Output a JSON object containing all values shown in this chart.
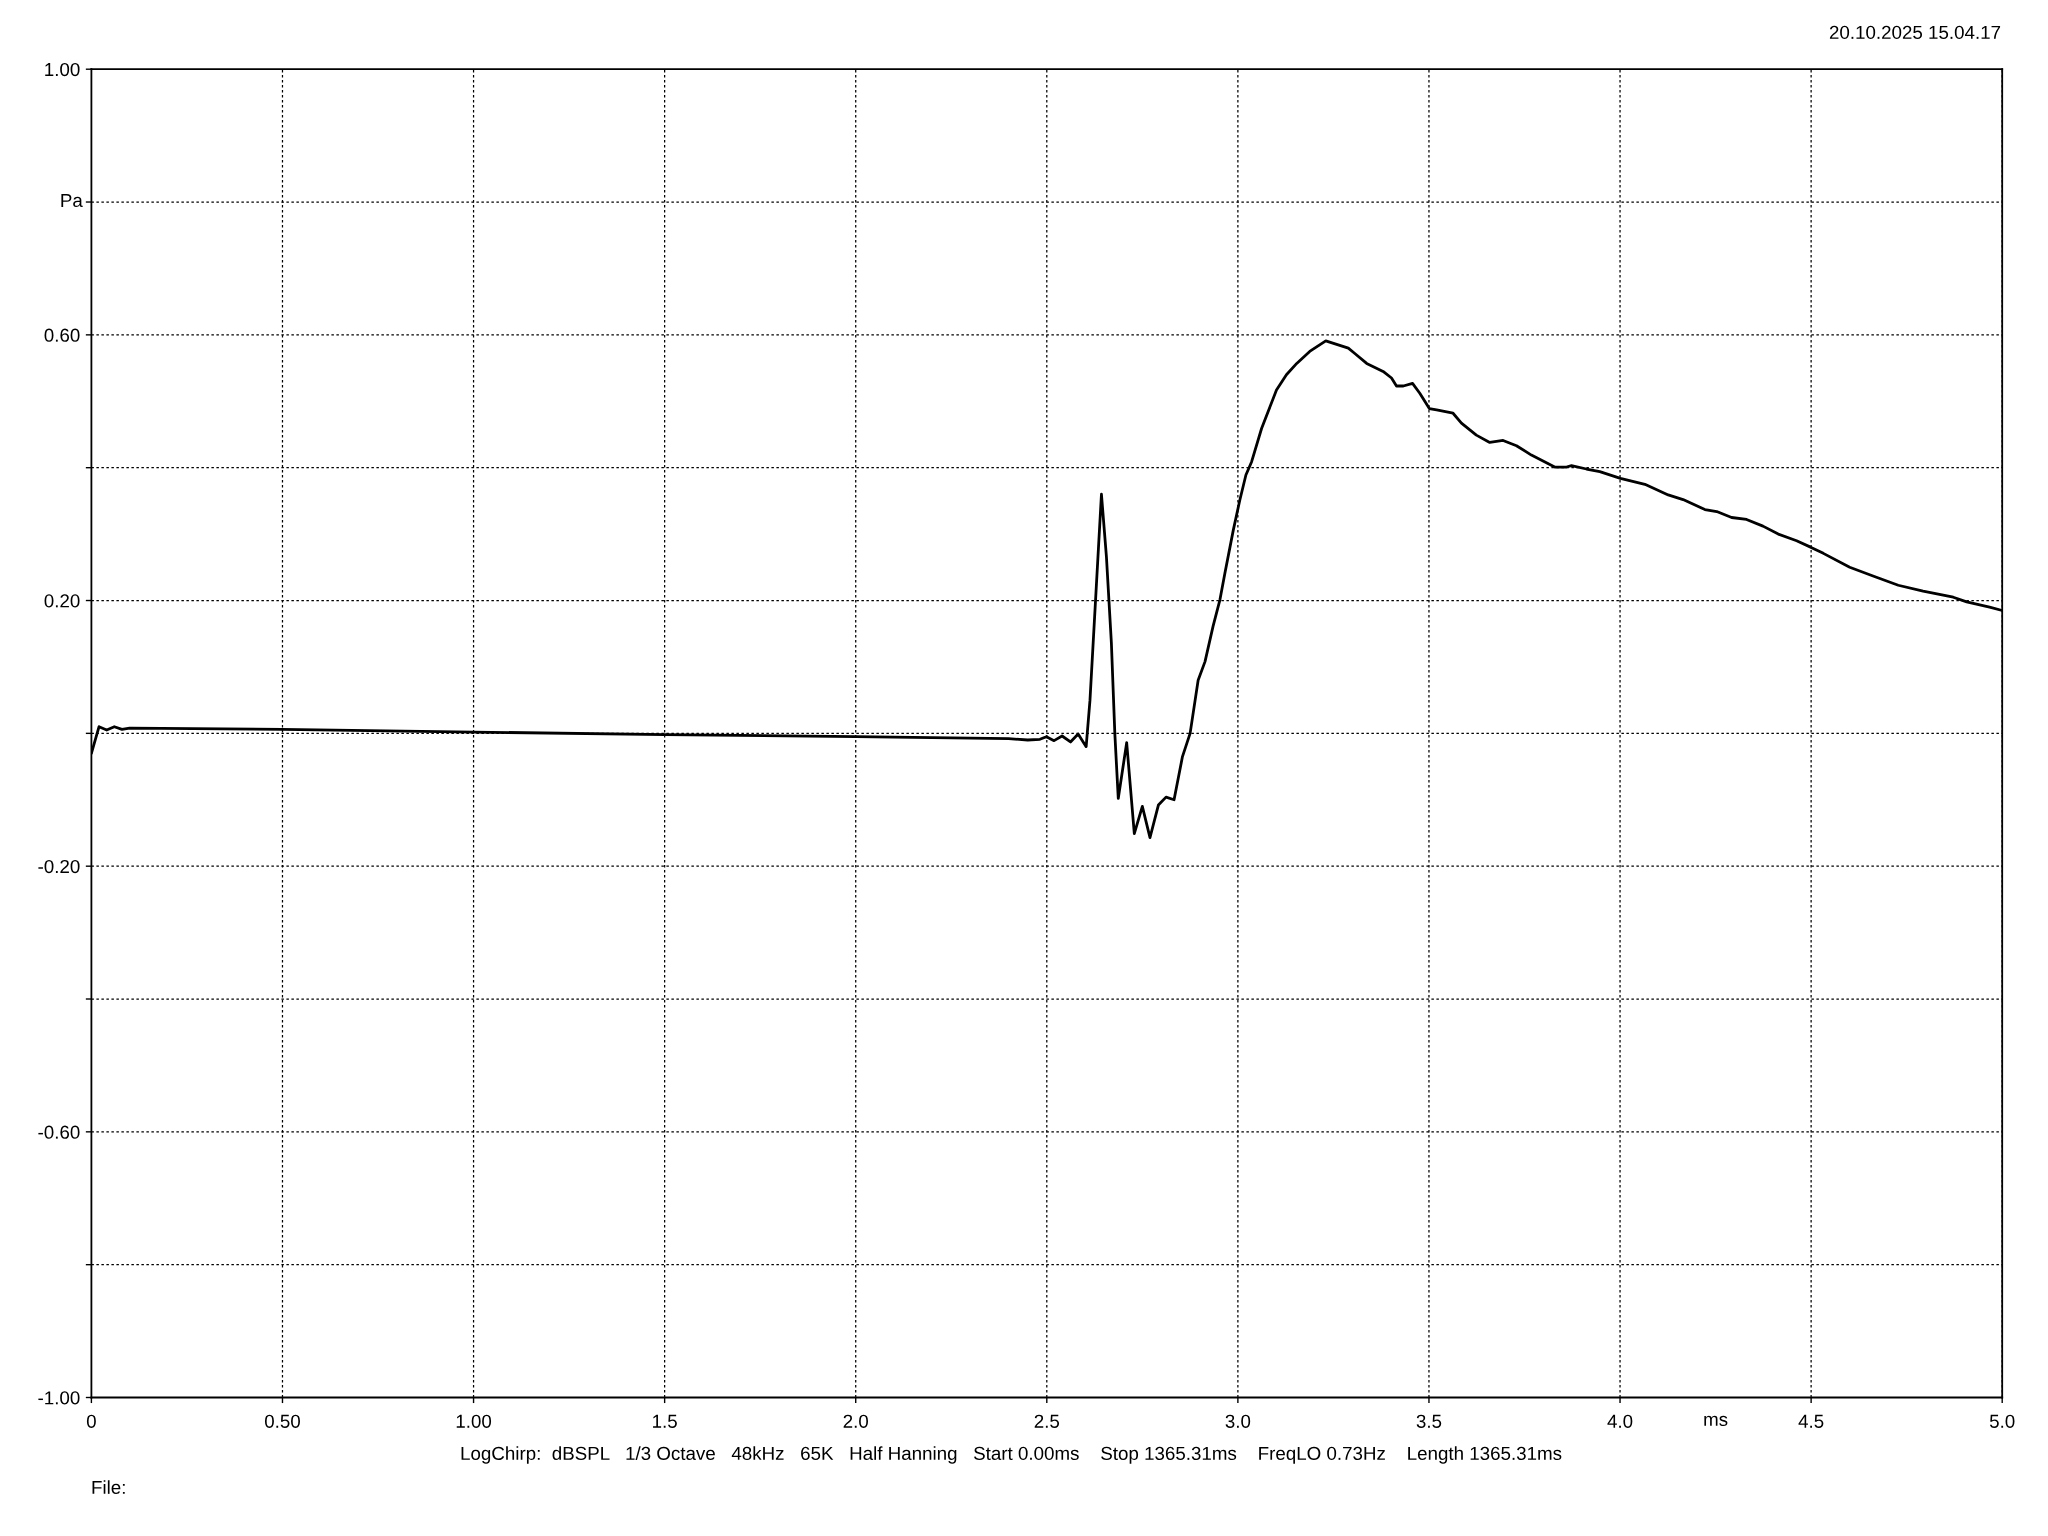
{
  "chart_data": {
    "type": "line",
    "xlabel": "ms",
    "ylabel": "Pa",
    "annotations": [
      "20.10.2025 15.04.17",
      "LogChirp:  dBSPL   1/3 Octave   48kHz   65K   Half Hanning   Start 0.00ms    Stop 1365.31ms    FreqLO 0.73Hz    Length 1365.31ms",
      "File:"
    ],
    "x": [
      0,
      0.02,
      0.04,
      0.06,
      0.08,
      0.1,
      0.5,
      1.0,
      1.5,
      2.0,
      2.4,
      2.45,
      2.482,
      2.499,
      2.519,
      2.54,
      2.562,
      2.582,
      2.603,
      2.613,
      2.643,
      2.656,
      2.669,
      2.678,
      2.687,
      2.709,
      2.729,
      2.75,
      2.77,
      2.792,
      2.812,
      2.833,
      2.855,
      2.875,
      2.896,
      2.914,
      2.935,
      2.953,
      2.966,
      2.988,
      3.005,
      3.021,
      3.036,
      3.062,
      3.101,
      3.127,
      3.154,
      3.188,
      3.23,
      3.289,
      3.306,
      3.337,
      3.38,
      3.402,
      3.415,
      3.433,
      3.457,
      3.476,
      3.501,
      3.52,
      3.563,
      3.585,
      3.624,
      3.659,
      3.694,
      3.729,
      3.768,
      3.829,
      3.86,
      3.873,
      3.912,
      3.947,
      4.001,
      4.065,
      4.126,
      4.165,
      4.222,
      4.253,
      4.292,
      4.331,
      4.374,
      4.414,
      4.462,
      4.5,
      4.532,
      4.601,
      4.662,
      4.728,
      4.793,
      4.872,
      4.907,
      4.967,
      5.0
    ],
    "values": [
      -0.03,
      0.01,
      0.005,
      0.01,
      0.006,
      0.008,
      0.006,
      0.002,
      -0.002,
      -0.005,
      -0.008,
      -0.01,
      -0.009,
      -0.005,
      -0.011,
      -0.004,
      -0.013,
      -0.001,
      -0.02,
      0.05,
      0.36,
      0.266,
      0.136,
      0.0,
      -0.098,
      -0.014,
      -0.151,
      -0.11,
      -0.157,
      -0.108,
      -0.096,
      -0.1,
      -0.035,
      0.0,
      0.08,
      0.108,
      0.161,
      0.201,
      0.241,
      0.306,
      0.351,
      0.389,
      0.409,
      0.459,
      0.517,
      0.54,
      0.557,
      0.575,
      0.591,
      0.58,
      0.572,
      0.557,
      0.545,
      0.535,
      0.523,
      0.523,
      0.527,
      0.512,
      0.489,
      0.487,
      0.482,
      0.467,
      0.449,
      0.438,
      0.441,
      0.433,
      0.419,
      0.401,
      0.401,
      0.403,
      0.398,
      0.394,
      0.384,
      0.375,
      0.359,
      0.352,
      0.337,
      0.334,
      0.325,
      0.322,
      0.312,
      0.3,
      0.29,
      0.28,
      0.271,
      0.25,
      0.237,
      0.223,
      0.214,
      0.205,
      0.198,
      0.19,
      0.185
    ],
    "color": "#000000",
    "xlim": [
      0,
      5
    ],
    "xticks": [
      0,
      {
        "value": 0.5,
        "label": "0.50"
      },
      {
        "value": 1,
        "label": "1.00"
      },
      1.5,
      {
        "value": 2,
        "label": "2.0"
      },
      2.5,
      {
        "value": 3,
        "label": "3.0"
      },
      3.5,
      {
        "value": 4,
        "label": "4.0"
      },
      4.5,
      {
        "value": 5,
        "label": "5.0"
      }
    ],
    "ylim": [
      -1,
      1
    ],
    "yticks": [
      {
        "value": -1,
        "label": "-1.00"
      },
      {
        "value": -0.8,
        "label": null
      },
      {
        "value": -0.6,
        "label": "-0.60"
      },
      {
        "value": -0.4,
        "label": null
      },
      {
        "value": -0.2,
        "label": "-0.20"
      },
      {
        "value": 0,
        "label": null
      },
      {
        "value": 0.2,
        "label": "0.20"
      },
      {
        "value": 0.4,
        "label": null
      },
      {
        "value": 0.6,
        "label": "0.60"
      },
      {
        "value": 0.8,
        "label": null
      },
      {
        "value": 1,
        "label": "1.00"
      }
    ],
    "grid": true
  }
}
